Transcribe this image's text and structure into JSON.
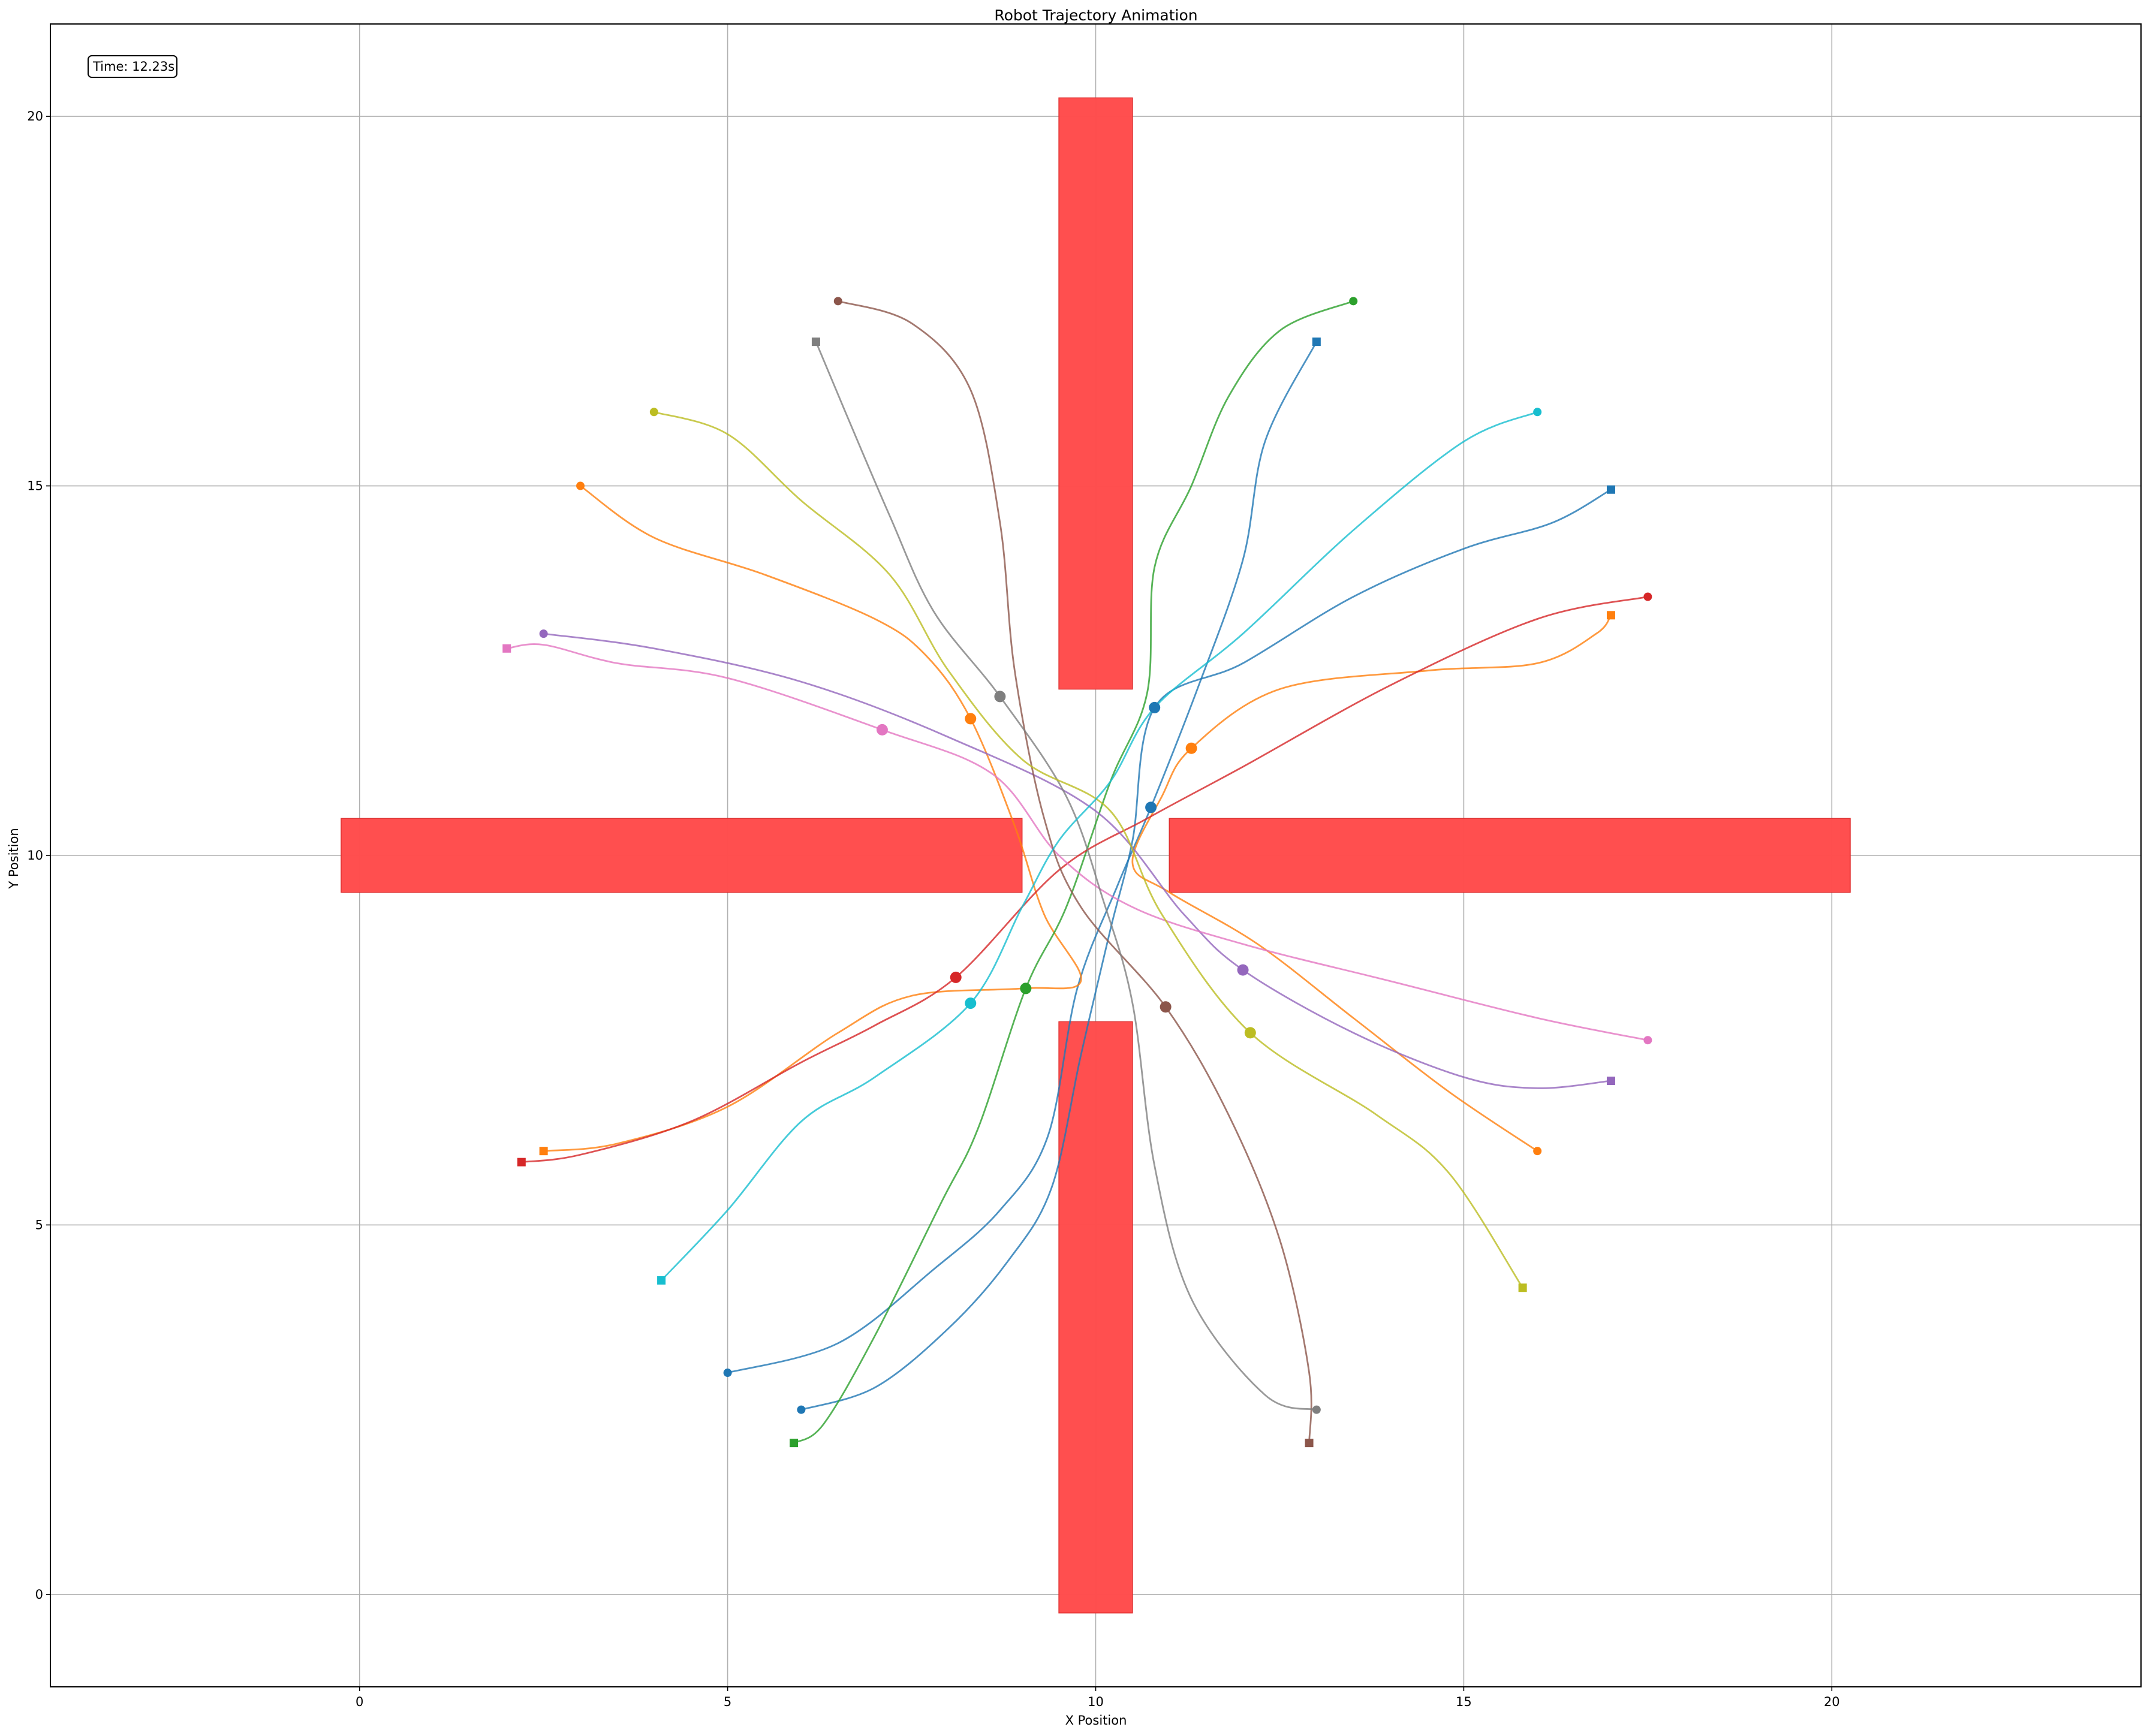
{
  "chart_data": {
    "type": "line",
    "title": "Robot Trajectory Animation",
    "xlabel": "X Position",
    "ylabel": "Y Position",
    "xlim": [
      -4.2,
      24.2
    ],
    "ylim": [
      -1.25,
      21.25
    ],
    "xticks": [
      0,
      5,
      10,
      15,
      20
    ],
    "yticks": [
      0,
      5,
      10,
      15,
      20
    ],
    "grid": true,
    "time_text": "Time: 12.23s",
    "obstacle_color": "#ff4b4b",
    "obstacles": [
      {
        "x0": 9.5,
        "x1": 10.5,
        "y0": 12.25,
        "y1": 20.25
      },
      {
        "x0": 9.5,
        "x1": 10.5,
        "y0": -0.25,
        "y1": 7.75
      },
      {
        "x0": -0.25,
        "x1": 9.0,
        "y0": 9.5,
        "y1": 10.5
      },
      {
        "x0": 11.0,
        "x1": 20.25,
        "y0": 9.5,
        "y1": 10.5
      }
    ],
    "series": [
      {
        "color": "#1f77b4",
        "start": [
          5.0,
          3.0
        ],
        "goal": [
          13.0,
          16.95
        ],
        "current": [
          10.75,
          10.65
        ],
        "path": [
          [
            5.0,
            3.0
          ],
          [
            6.5,
            3.4
          ],
          [
            7.8,
            4.4
          ],
          [
            8.7,
            5.2
          ],
          [
            9.35,
            6.2
          ],
          [
            9.75,
            8.2
          ],
          [
            10.3,
            9.6
          ],
          [
            10.75,
            10.65
          ],
          [
            11.4,
            12.3
          ],
          [
            12.0,
            14.0
          ],
          [
            12.3,
            15.6
          ],
          [
            13.0,
            16.95
          ]
        ]
      },
      {
        "color": "#1f77b4",
        "start": [
          6.0,
          2.5
        ],
        "goal": [
          17.0,
          14.95
        ],
        "current": [
          10.8,
          12.0
        ],
        "path": [
          [
            6.0,
            2.5
          ],
          [
            7.0,
            2.8
          ],
          [
            8.0,
            3.6
          ],
          [
            8.8,
            4.5
          ],
          [
            9.4,
            5.5
          ],
          [
            9.8,
            7.3
          ],
          [
            10.2,
            9.0
          ],
          [
            10.5,
            10.2
          ],
          [
            10.8,
            12.0
          ],
          [
            12.0,
            12.6
          ],
          [
            13.5,
            13.5
          ],
          [
            15.0,
            14.15
          ],
          [
            16.2,
            14.5
          ],
          [
            17.0,
            14.95
          ]
        ]
      },
      {
        "color": "#ff7f0e",
        "start": [
          3.0,
          15.0
        ],
        "goal": [
          2.5,
          6.0
        ],
        "current": [
          8.3,
          11.85
        ],
        "path": [
          [
            3.0,
            15.0
          ],
          [
            4.0,
            14.3
          ],
          [
            5.5,
            13.8
          ],
          [
            7.0,
            13.2
          ],
          [
            7.7,
            12.7
          ],
          [
            8.3,
            11.85
          ],
          [
            8.9,
            10.4
          ],
          [
            9.3,
            9.2
          ],
          [
            9.8,
            8.3
          ],
          [
            9.0,
            8.2
          ],
          [
            7.5,
            8.1
          ],
          [
            6.5,
            7.6
          ],
          [
            5.0,
            6.6
          ],
          [
            3.5,
            6.1
          ],
          [
            2.5,
            6.0
          ]
        ]
      },
      {
        "color": "#ff7f0e",
        "start": [
          16.0,
          6.0
        ],
        "goal": [
          17.0,
          13.25
        ],
        "current": [
          11.3,
          11.45
        ],
        "path": [
          [
            16.0,
            6.0
          ],
          [
            14.8,
            6.8
          ],
          [
            13.5,
            7.8
          ],
          [
            12.2,
            8.8
          ],
          [
            11.0,
            9.5
          ],
          [
            10.5,
            9.9
          ],
          [
            10.9,
            10.8
          ],
          [
            11.3,
            11.45
          ],
          [
            12.5,
            12.25
          ],
          [
            14.5,
            12.5
          ],
          [
            16.0,
            12.6
          ],
          [
            16.8,
            13.0
          ],
          [
            17.0,
            13.25
          ]
        ]
      },
      {
        "color": "#2ca02c",
        "start": [
          13.5,
          17.5
        ],
        "goal": [
          5.9,
          2.05
        ],
        "current": [
          9.05,
          8.2
        ],
        "path": [
          [
            13.5,
            17.5
          ],
          [
            12.5,
            17.1
          ],
          [
            11.8,
            16.2
          ],
          [
            11.3,
            15.0
          ],
          [
            10.8,
            13.9
          ],
          [
            10.7,
            12.2
          ],
          [
            10.2,
            11.0
          ],
          [
            9.6,
            9.3
          ],
          [
            9.05,
            8.2
          ],
          [
            8.4,
            6.3
          ],
          [
            7.9,
            5.3
          ],
          [
            7.0,
            3.5
          ],
          [
            6.3,
            2.3
          ],
          [
            5.9,
            2.05
          ]
        ]
      },
      {
        "color": "#d62728",
        "start": [
          17.5,
          13.5
        ],
        "goal": [
          2.2,
          5.85
        ],
        "current": [
          8.1,
          8.35
        ],
        "path": [
          [
            17.5,
            13.5
          ],
          [
            16.0,
            13.2
          ],
          [
            14.0,
            12.3
          ],
          [
            12.0,
            11.2
          ],
          [
            10.7,
            10.5
          ],
          [
            9.5,
            9.8
          ],
          [
            8.1,
            8.35
          ],
          [
            7.0,
            7.7
          ],
          [
            6.0,
            7.2
          ],
          [
            4.5,
            6.4
          ],
          [
            3.0,
            5.95
          ],
          [
            2.2,
            5.85
          ]
        ]
      },
      {
        "color": "#9467bd",
        "start": [
          2.5,
          13.0
        ],
        "goal": [
          17.0,
          6.95
        ],
        "current": [
          12.0,
          8.45
        ],
        "path": [
          [
            2.5,
            13.0
          ],
          [
            4.0,
            12.8
          ],
          [
            6.0,
            12.35
          ],
          [
            8.0,
            11.6
          ],
          [
            10.0,
            10.6
          ],
          [
            11.2,
            9.2
          ],
          [
            12.0,
            8.45
          ],
          [
            13.5,
            7.6
          ],
          [
            15.0,
            7.0
          ],
          [
            16.0,
            6.85
          ],
          [
            17.0,
            6.95
          ]
        ]
      },
      {
        "color": "#e377c2",
        "start": [
          17.5,
          7.5
        ],
        "goal": [
          2.0,
          12.8
        ],
        "current": [
          7.1,
          11.7
        ],
        "path": [
          [
            17.5,
            7.5
          ],
          [
            16.0,
            7.8
          ],
          [
            14.0,
            8.3
          ],
          [
            12.0,
            8.8
          ],
          [
            10.5,
            9.3
          ],
          [
            9.5,
            10.0
          ],
          [
            8.6,
            11.1
          ],
          [
            7.1,
            11.7
          ],
          [
            5.0,
            12.4
          ],
          [
            3.5,
            12.6
          ],
          [
            2.5,
            12.85
          ],
          [
            2.0,
            12.8
          ]
        ]
      },
      {
        "color": "#8c564b",
        "start": [
          6.5,
          17.5
        ],
        "goal": [
          12.9,
          2.05
        ],
        "current": [
          10.95,
          7.95
        ],
        "path": [
          [
            6.5,
            17.5
          ],
          [
            7.5,
            17.2
          ],
          [
            8.3,
            16.3
          ],
          [
            8.7,
            14.5
          ],
          [
            8.9,
            12.5
          ],
          [
            9.3,
            10.5
          ],
          [
            9.8,
            9.3
          ],
          [
            10.95,
            7.95
          ],
          [
            11.8,
            6.5
          ],
          [
            12.5,
            4.8
          ],
          [
            12.9,
            3.0
          ],
          [
            12.9,
            2.05
          ]
        ]
      },
      {
        "color": "#7f7f7f",
        "start": [
          13.0,
          2.5
        ],
        "goal": [
          6.2,
          16.95
        ],
        "current": [
          8.7,
          12.15
        ],
        "path": [
          [
            13.0,
            2.5
          ],
          [
            12.3,
            2.7
          ],
          [
            11.3,
            4.0
          ],
          [
            10.8,
            5.8
          ],
          [
            10.5,
            8.0
          ],
          [
            10.1,
            9.4
          ],
          [
            9.6,
            10.8
          ],
          [
            8.7,
            12.15
          ],
          [
            7.8,
            13.3
          ],
          [
            7.2,
            14.6
          ],
          [
            6.6,
            16.0
          ],
          [
            6.2,
            16.95
          ]
        ]
      },
      {
        "color": "#bcbd22",
        "start": [
          4.0,
          16.0
        ],
        "goal": [
          15.8,
          4.15
        ],
        "current": [
          12.1,
          7.6
        ],
        "path": [
          [
            4.0,
            16.0
          ],
          [
            5.0,
            15.7
          ],
          [
            6.0,
            14.8
          ],
          [
            7.2,
            13.8
          ],
          [
            8.0,
            12.5
          ],
          [
            9.0,
            11.3
          ],
          [
            10.2,
            10.6
          ],
          [
            10.9,
            9.2
          ],
          [
            12.1,
            7.6
          ],
          [
            13.8,
            6.5
          ],
          [
            14.8,
            5.7
          ],
          [
            15.8,
            4.15
          ]
        ]
      },
      {
        "color": "#17becf",
        "start": [
          16.0,
          16.0
        ],
        "goal": [
          4.1,
          4.25
        ],
        "current": [
          8.3,
          8.0
        ],
        "path": [
          [
            16.0,
            16.0
          ],
          [
            15.0,
            15.6
          ],
          [
            13.5,
            14.4
          ],
          [
            12.0,
            13.0
          ],
          [
            10.8,
            12.0
          ],
          [
            10.2,
            11.0
          ],
          [
            9.5,
            10.2
          ],
          [
            9.0,
            9.3
          ],
          [
            8.3,
            8.0
          ],
          [
            7.0,
            7.0
          ],
          [
            6.0,
            6.4
          ],
          [
            5.0,
            5.2
          ],
          [
            4.1,
            4.25
          ]
        ]
      }
    ]
  }
}
